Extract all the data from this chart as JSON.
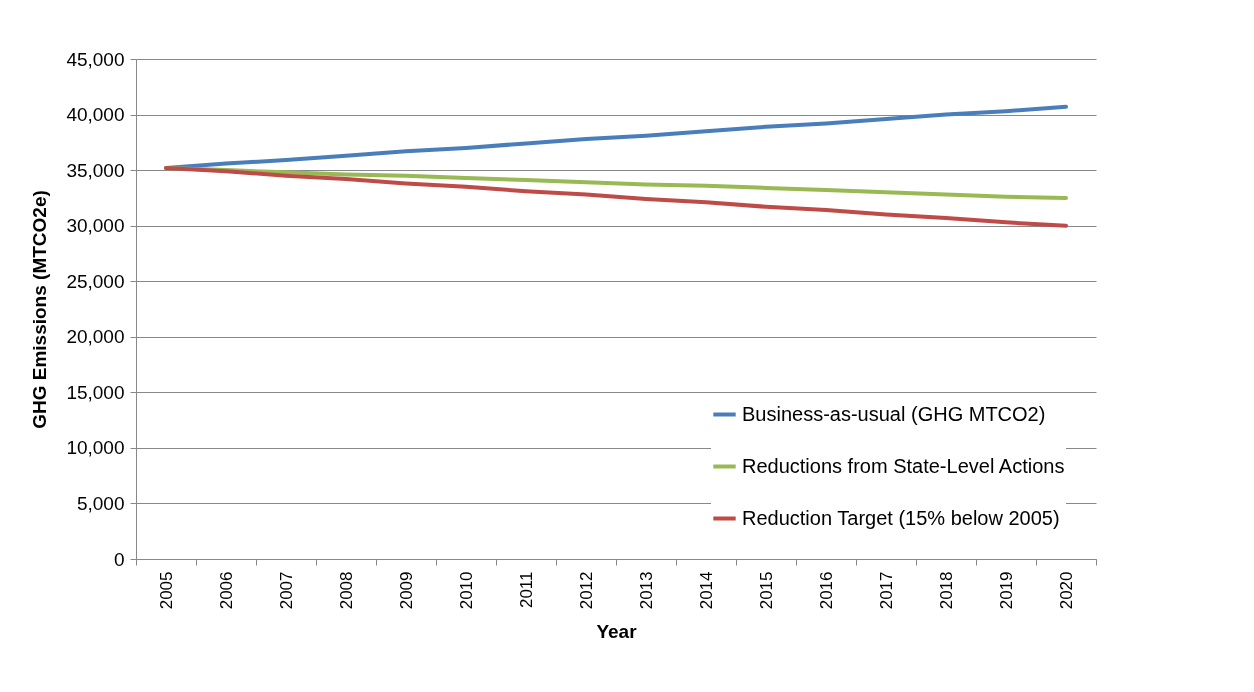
{
  "chart_data": {
    "type": "line",
    "xlabel": "Year",
    "ylabel": "GHG Emissions (MTCO2e)",
    "categories": [
      "2005",
      "2006",
      "2007",
      "2008",
      "2009",
      "2010",
      "2011",
      "2012",
      "2013",
      "2014",
      "2015",
      "2016",
      "2017",
      "2018",
      "2019",
      "2020"
    ],
    "series": [
      {
        "name": "Business-as-usual (GHG MTCO2)",
        "color": "#4a7ebb",
        "values": [
          35200,
          35600,
          35900,
          36300,
          36700,
          37000,
          37400,
          37800,
          38100,
          38500,
          38900,
          39200,
          39600,
          40000,
          40300,
          40700
        ]
      },
      {
        "name": "Reductions from State-Level Actions",
        "color": "#98b954",
        "values": [
          35200,
          35000,
          34800,
          34600,
          34500,
          34300,
          34100,
          33900,
          33700,
          33600,
          33400,
          33200,
          33000,
          32800,
          32600,
          32500
        ]
      },
      {
        "name": "Reduction Target (15% below 2005)",
        "color": "#be4b48",
        "values": [
          35200,
          34900,
          34500,
          34200,
          33800,
          33500,
          33100,
          32800,
          32400,
          32100,
          31700,
          31400,
          31000,
          30700,
          30300,
          30000
        ]
      }
    ],
    "ylim": [
      0,
      45000
    ],
    "yticks": [
      0,
      {
        "value": 5000,
        "label": "5,000"
      },
      {
        "value": 10000,
        "label": "10,000"
      },
      {
        "value": 15000,
        "label": "15,000"
      },
      {
        "value": 20000,
        "label": "20,000"
      },
      {
        "value": 25000,
        "label": "25,000"
      },
      {
        "value": 30000,
        "label": "30,000"
      },
      {
        "value": 35000,
        "label": "35,000"
      },
      {
        "value": 40000,
        "label": "40,000"
      },
      {
        "value": 45000,
        "label": "45,000"
      }
    ],
    "grid": "y",
    "legend": "bottom right",
    "marker": "none",
    "line_style": "solid"
  }
}
